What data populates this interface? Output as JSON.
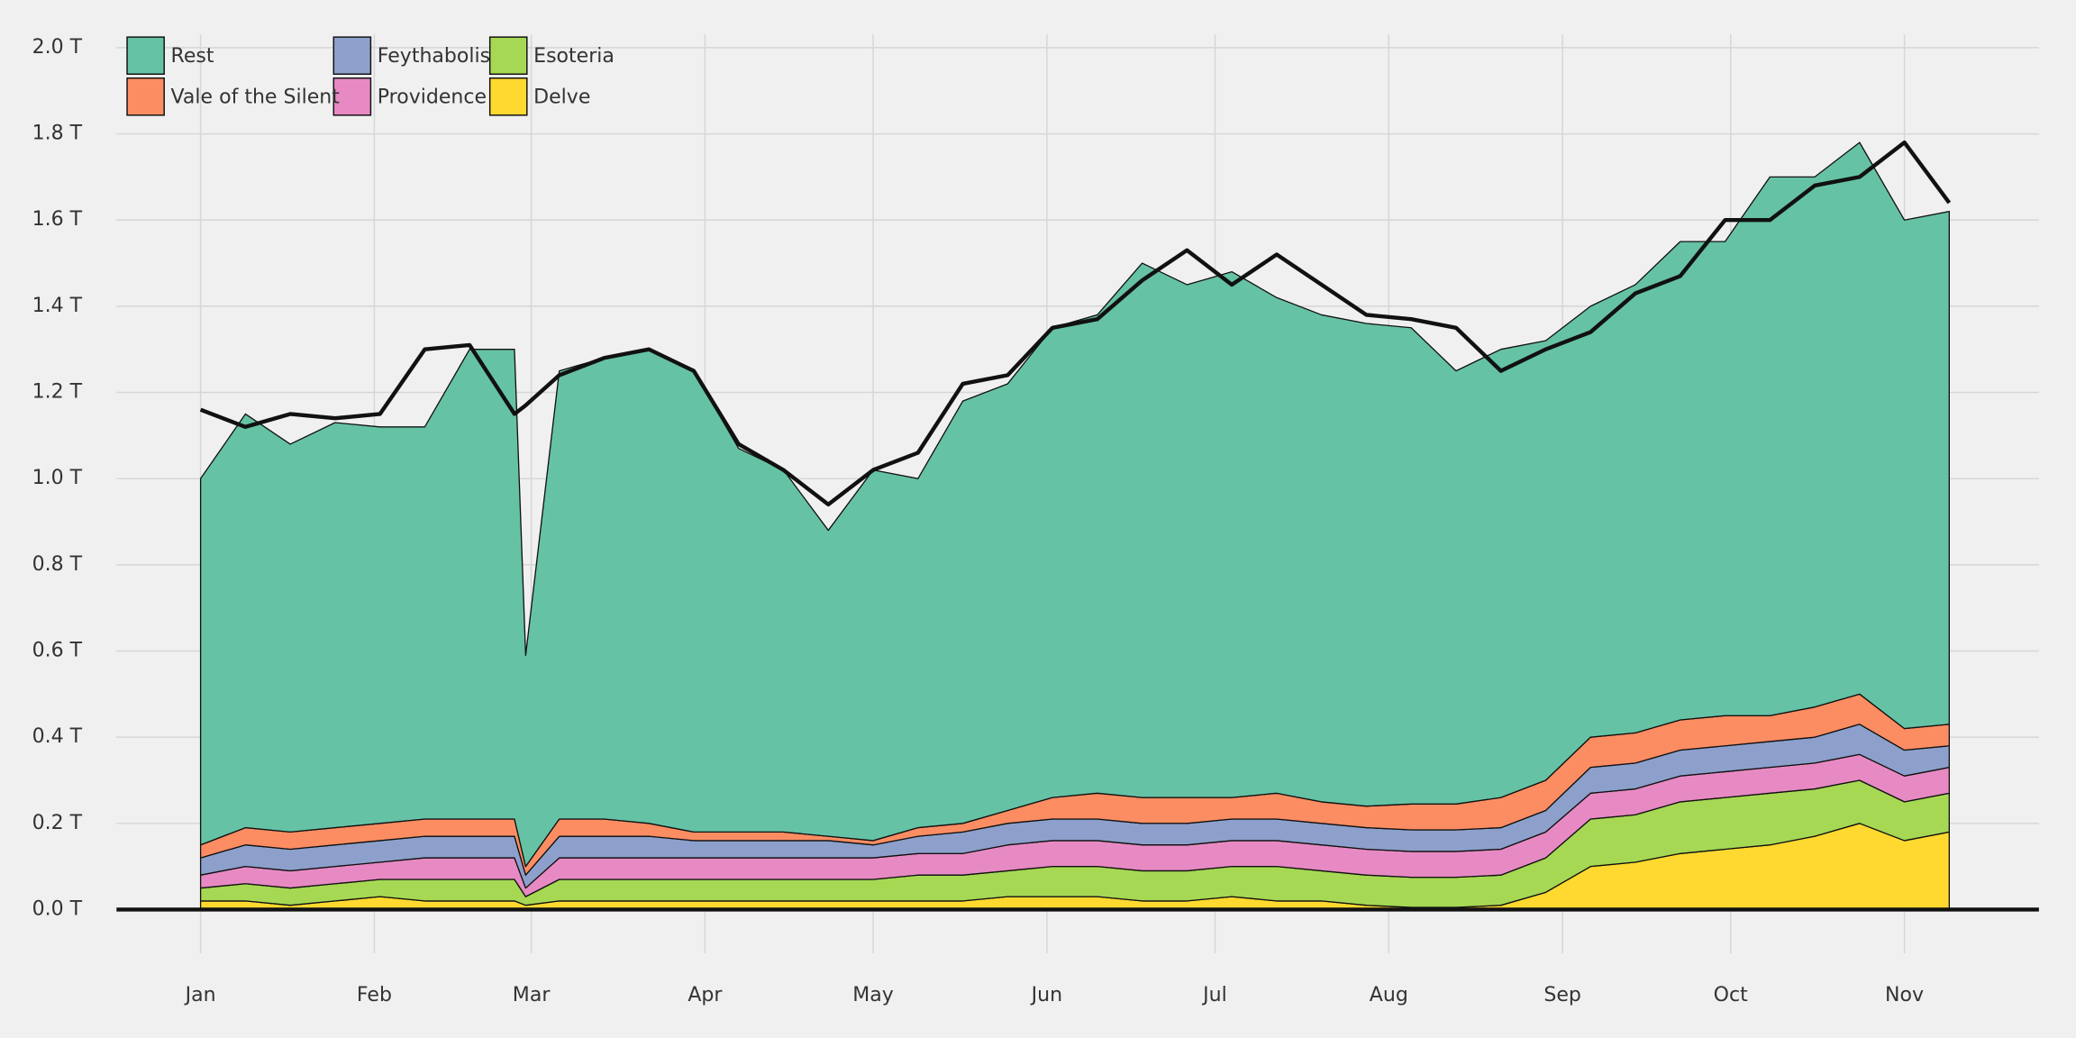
{
  "chart_data": {
    "type": "stacked_area",
    "x": [
      0,
      8,
      16,
      24,
      32,
      40,
      48,
      56,
      58,
      64,
      72,
      80,
      88,
      96,
      104,
      112,
      120,
      128,
      136,
      144,
      152,
      160,
      168,
      176,
      184,
      192,
      200,
      208,
      216,
      224,
      232,
      240,
      248,
      256,
      264,
      272,
      280,
      288,
      296,
      304,
      312
    ],
    "xlim": [
      -15,
      328
    ],
    "xticks": [
      {
        "value": 0,
        "label": "Jan"
      },
      {
        "value": 31,
        "label": "Feb"
      },
      {
        "value": 59,
        "label": "Mar"
      },
      {
        "value": 90,
        "label": "Apr"
      },
      {
        "value": 120,
        "label": "May"
      },
      {
        "value": 151,
        "label": "Jun"
      },
      {
        "value": 181,
        "label": "Jul"
      },
      {
        "value": 212,
        "label": "Aug"
      },
      {
        "value": 243,
        "label": "Sep"
      },
      {
        "value": 273,
        "label": "Oct"
      },
      {
        "value": 304,
        "label": "Nov"
      }
    ],
    "ylim": [
      0,
      2.0
    ],
    "yticks": [
      {
        "value": 0,
        "label": "0.0 T"
      },
      {
        "value": 0.2,
        "label": "0.2 T"
      },
      {
        "value": 0.4,
        "label": "0.4 T"
      },
      {
        "value": 0.6,
        "label": "0.6 T"
      },
      {
        "value": 0.8,
        "label": "0.8 T"
      },
      {
        "value": 1.0,
        "label": "1.0 T"
      },
      {
        "value": 1.2,
        "label": "1.2 T"
      },
      {
        "value": 1.4,
        "label": "1.4 T"
      },
      {
        "value": 1.6,
        "label": "1.6 T"
      },
      {
        "value": 1.8,
        "label": "1.8 T"
      },
      {
        "value": 2.0,
        "label": "2.0 T"
      }
    ],
    "grid": true,
    "legend": "top-left",
    "series": [
      {
        "name": "Delve",
        "color": "#ffd92f",
        "values": [
          0.02,
          0.02,
          0.01,
          0.02,
          0.03,
          0.02,
          0.02,
          0.02,
          0.01,
          0.02,
          0.02,
          0.02,
          0.02,
          0.02,
          0.02,
          0.02,
          0.02,
          0.02,
          0.02,
          0.03,
          0.03,
          0.03,
          0.02,
          0.02,
          0.03,
          0.02,
          0.02,
          0.01,
          0.005,
          0.005,
          0.01,
          0.04,
          0.1,
          0.11,
          0.13,
          0.14,
          0.15,
          0.17,
          0.2,
          0.16,
          0.18
        ]
      },
      {
        "name": "Esoteria",
        "color": "#a6d854",
        "values": [
          0.03,
          0.04,
          0.04,
          0.04,
          0.04,
          0.05,
          0.05,
          0.05,
          0.02,
          0.05,
          0.05,
          0.05,
          0.05,
          0.05,
          0.05,
          0.05,
          0.05,
          0.06,
          0.06,
          0.06,
          0.07,
          0.07,
          0.07,
          0.07,
          0.07,
          0.08,
          0.07,
          0.07,
          0.07,
          0.07,
          0.07,
          0.08,
          0.11,
          0.11,
          0.12,
          0.12,
          0.12,
          0.11,
          0.1,
          0.09,
          0.09
        ]
      },
      {
        "name": "Providence",
        "color": "#e78ac3",
        "values": [
          0.03,
          0.04,
          0.04,
          0.04,
          0.04,
          0.05,
          0.05,
          0.05,
          0.02,
          0.05,
          0.05,
          0.05,
          0.05,
          0.05,
          0.05,
          0.05,
          0.05,
          0.05,
          0.05,
          0.06,
          0.06,
          0.06,
          0.06,
          0.06,
          0.06,
          0.06,
          0.06,
          0.06,
          0.06,
          0.06,
          0.06,
          0.06,
          0.06,
          0.06,
          0.06,
          0.06,
          0.06,
          0.06,
          0.06,
          0.06,
          0.06
        ]
      },
      {
        "name": "Feythabolis",
        "color": "#8da0cb",
        "values": [
          0.04,
          0.05,
          0.05,
          0.05,
          0.05,
          0.05,
          0.05,
          0.05,
          0.03,
          0.05,
          0.05,
          0.05,
          0.04,
          0.04,
          0.04,
          0.04,
          0.03,
          0.04,
          0.05,
          0.05,
          0.05,
          0.05,
          0.05,
          0.05,
          0.05,
          0.05,
          0.05,
          0.05,
          0.05,
          0.05,
          0.05,
          0.05,
          0.06,
          0.06,
          0.06,
          0.06,
          0.06,
          0.06,
          0.07,
          0.06,
          0.05
        ]
      },
      {
        "name": "Vale of the Silent",
        "color": "#fc8d62",
        "values": [
          0.03,
          0.04,
          0.04,
          0.04,
          0.04,
          0.04,
          0.04,
          0.04,
          0.02,
          0.04,
          0.04,
          0.03,
          0.02,
          0.02,
          0.02,
          0.01,
          0.01,
          0.02,
          0.02,
          0.03,
          0.05,
          0.06,
          0.06,
          0.06,
          0.05,
          0.06,
          0.05,
          0.05,
          0.06,
          0.06,
          0.07,
          0.07,
          0.07,
          0.07,
          0.07,
          0.07,
          0.06,
          0.07,
          0.07,
          0.05,
          0.05
        ]
      },
      {
        "name": "Rest",
        "color": "#66c2a5",
        "values": [
          0.85,
          0.96,
          0.9,
          0.94,
          0.92,
          0.91,
          1.09,
          1.09,
          0.49,
          1.04,
          1.07,
          1.1,
          1.07,
          0.89,
          0.84,
          0.71,
          0.86,
          0.81,
          0.98,
          0.99,
          1.09,
          1.11,
          1.24,
          1.19,
          1.22,
          1.15,
          1.13,
          1.12,
          1.105,
          1.005,
          1.04,
          1.02,
          1.0,
          1.04,
          1.11,
          1.1,
          1.25,
          1.23,
          1.28,
          1.18,
          1.19
        ]
      }
    ],
    "trend": {
      "color": "#111111",
      "values": [
        1.16,
        1.12,
        1.15,
        1.14,
        1.15,
        1.3,
        1.31,
        1.15,
        1.17,
        1.24,
        1.28,
        1.3,
        1.25,
        1.08,
        1.02,
        0.94,
        1.02,
        1.06,
        1.22,
        1.24,
        1.35,
        1.37,
        1.46,
        1.53,
        1.45,
        1.52,
        1.45,
        1.38,
        1.37,
        1.35,
        1.25,
        1.3,
        1.34,
        1.43,
        1.47,
        1.6,
        1.6,
        1.68,
        1.7,
        1.78,
        1.64
      ]
    }
  }
}
